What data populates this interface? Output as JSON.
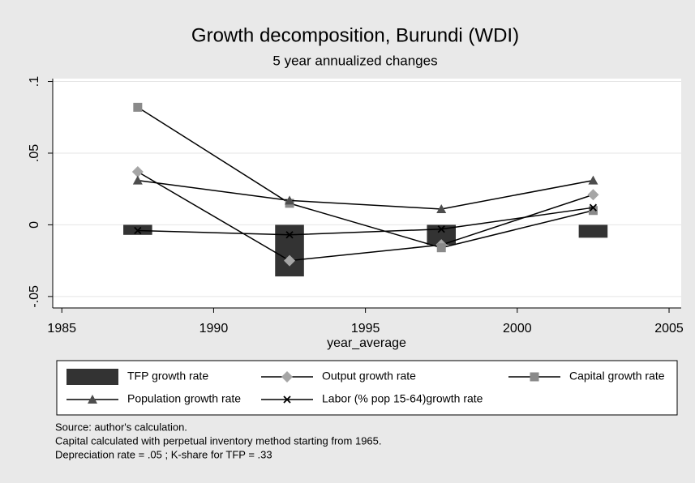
{
  "chart_data": {
    "type": "line",
    "title": "Growth decomposition, Burundi (WDI)",
    "subtitle": "5 year annualized changes",
    "x_label": "year_average",
    "x": [
      1987.5,
      1992.5,
      1997.5,
      2002.5
    ],
    "xlim": [
      1984.7,
      2005.4
    ],
    "xticks": [
      1985,
      1990,
      1995,
      2000,
      2005
    ],
    "ylim": [
      -0.058,
      0.102
    ],
    "yticks": [
      {
        "value": -0.05,
        "label": "-.05"
      },
      0,
      {
        "value": 0.05,
        "label": ".05"
      },
      {
        "value": 0.1,
        "label": ".1"
      }
    ],
    "grid": true,
    "legend": "bottom",
    "series": [
      {
        "name": "TFP growth rate",
        "type": "bar",
        "color": "#333333",
        "values": [
          -0.007,
          -0.036,
          -0.014,
          -0.009
        ]
      },
      {
        "name": "Output growth rate",
        "type": "line",
        "marker": "diamond",
        "color": "#a6a6a6",
        "values": [
          0.037,
          -0.025,
          -0.014,
          0.021
        ]
      },
      {
        "name": "Capital growth rate",
        "type": "line",
        "marker": "square",
        "color": "#8a8a8a",
        "values": [
          0.082,
          0.015,
          -0.016,
          0.01
        ]
      },
      {
        "name": "Population growth rate",
        "type": "line",
        "marker": "triangle",
        "color": "#4d4d4d",
        "values": [
          0.031,
          0.017,
          0.011,
          0.031
        ]
      },
      {
        "name": "Labor (% pop 15-64)growth rate",
        "type": "line",
        "marker": "x",
        "color": "#000000",
        "values": [
          -0.004,
          -0.007,
          -0.003,
          0.012
        ]
      }
    ],
    "notes": [
      "Source: author's calculation.",
      "Capital calculated with perpetual inventory method starting from 1965.",
      "Depreciation rate = .05 ; K-share for TFP = .33"
    ]
  }
}
